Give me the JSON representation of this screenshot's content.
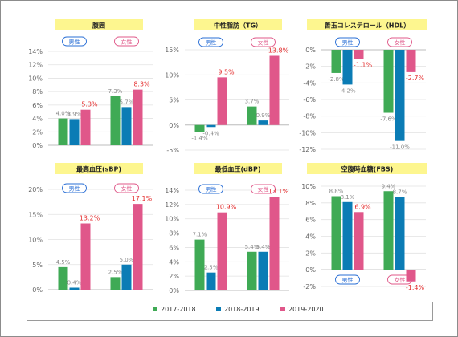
{
  "colors": {
    "s2017": "#3faa55",
    "s2018": "#0b7cb5",
    "s2019": "#e0578a",
    "titleBg": "#fdf68f",
    "male": "#2a6fd6",
    "female": "#e05a8a",
    "redLabel": "#e53030",
    "grayLabel": "#8a8a8a"
  },
  "legend": {
    "items": [
      {
        "label": "2017-2018",
        "color": "#3faa55"
      },
      {
        "label": "2018-2019",
        "color": "#0b7cb5"
      },
      {
        "label": "2019-2020",
        "color": "#e0578a"
      }
    ]
  },
  "chart_data": [
    {
      "type": "bar",
      "title": "腹囲",
      "categories": [
        "男性",
        "女性"
      ],
      "series": [
        {
          "name": "2017-2018",
          "values": [
            4.0,
            7.3
          ]
        },
        {
          "name": "2018-2019",
          "values": [
            3.9,
            5.7
          ]
        },
        {
          "name": "2019-2020",
          "values": [
            5.3,
            8.3
          ]
        }
      ],
      "value_labels": [
        [
          "4.0%",
          "3.9%",
          "5.3%"
        ],
        [
          "7.3%",
          "5.7%",
          "8.3%"
        ]
      ],
      "yticks": [
        "0%",
        "2%",
        "4%",
        "6%",
        "8%",
        "10%",
        "12%",
        "14%"
      ],
      "ylim": [
        0,
        14
      ],
      "grid": true,
      "category_position": "top"
    },
    {
      "type": "bar",
      "title": "中性脂肪（TG）",
      "categories": [
        "男性",
        "女性"
      ],
      "series": [
        {
          "name": "2017-2018",
          "values": [
            -1.4,
            3.7
          ]
        },
        {
          "name": "2018-2019",
          "values": [
            -0.4,
            0.9
          ]
        },
        {
          "name": "2019-2020",
          "values": [
            9.5,
            13.8
          ]
        }
      ],
      "value_labels": [
        [
          "-1.4%",
          "-0.4%",
          "9.5%"
        ],
        [
          "3.7%",
          "0.9%",
          "13.8%"
        ]
      ],
      "yticks": [
        "-5%",
        "0%",
        "5%",
        "10%",
        "15%"
      ],
      "ylim": [
        -5,
        15
      ],
      "grid": true,
      "category_position": "top"
    },
    {
      "type": "bar",
      "title": "善玉コレステロール（HDL）",
      "categories": [
        "男性",
        "女性"
      ],
      "series": [
        {
          "name": "2017-2018",
          "values": [
            -2.8,
            -7.6
          ]
        },
        {
          "name": "2018-2019",
          "values": [
            -4.2,
            -11.0
          ]
        },
        {
          "name": "2019-2020",
          "values": [
            -1.1,
            -2.7
          ]
        }
      ],
      "value_labels": [
        [
          "-2.8%",
          "-4.2%",
          "-1.1%"
        ],
        [
          "-7.6%",
          "-11.0%",
          "-2.7%"
        ]
      ],
      "yticks": [
        "-12%",
        "-10%",
        "-8%",
        "-6%",
        "-4%",
        "-2%",
        "0%"
      ],
      "ylim": [
        -12,
        0
      ],
      "grid": true,
      "category_position": "top"
    },
    {
      "type": "bar",
      "title": "最高血圧(sBP)",
      "categories": [
        "男性",
        "女性"
      ],
      "series": [
        {
          "name": "2017-2018",
          "values": [
            4.5,
            2.5
          ]
        },
        {
          "name": "2018-2019",
          "values": [
            0.4,
            5.0
          ]
        },
        {
          "name": "2019-2020",
          "values": [
            13.2,
            17.1
          ]
        }
      ],
      "value_labels": [
        [
          "4.5%",
          "0.4%",
          "13.2%"
        ],
        [
          "2.5%",
          "5.0%",
          "17.1%"
        ]
      ],
      "yticks": [
        "0%",
        "5%",
        "10%",
        "15%",
        "20%"
      ],
      "ylim": [
        0,
        20
      ],
      "grid": true,
      "category_position": "top"
    },
    {
      "type": "bar",
      "title": "最低血圧(dBP)",
      "categories": [
        "男性",
        "女性"
      ],
      "series": [
        {
          "name": "2017-2018",
          "values": [
            7.1,
            5.4
          ]
        },
        {
          "name": "2018-2019",
          "values": [
            2.5,
            5.4
          ]
        },
        {
          "name": "2019-2020",
          "values": [
            10.9,
            13.1
          ]
        }
      ],
      "value_labels": [
        [
          "7.1%",
          "2.5%",
          "10.9%"
        ],
        [
          "5.4%",
          "5.4%",
          "13.1%"
        ]
      ],
      "yticks": [
        "0%",
        "2%",
        "4%",
        "6%",
        "8%",
        "10%",
        "12%",
        "14%"
      ],
      "ylim": [
        0,
        14
      ],
      "grid": true,
      "category_position": "top"
    },
    {
      "type": "bar",
      "title": "空腹時血糖(FBS)",
      "categories": [
        "男性",
        "女性"
      ],
      "series": [
        {
          "name": "2017-2018",
          "values": [
            8.8,
            9.4
          ]
        },
        {
          "name": "2018-2019",
          "values": [
            8.1,
            8.7
          ]
        },
        {
          "name": "2019-2020",
          "values": [
            6.9,
            -1.4
          ]
        }
      ],
      "value_labels": [
        [
          "8.8%",
          "8.1%",
          "6.9%"
        ],
        [
          "9.4%",
          "8.7%",
          "-1.4%"
        ]
      ],
      "yticks": [
        "-2%",
        "0%",
        "2%",
        "4%",
        "6%",
        "8%",
        "10%"
      ],
      "ylim": [
        -2,
        10
      ],
      "grid": true,
      "category_position": "bottom"
    }
  ]
}
